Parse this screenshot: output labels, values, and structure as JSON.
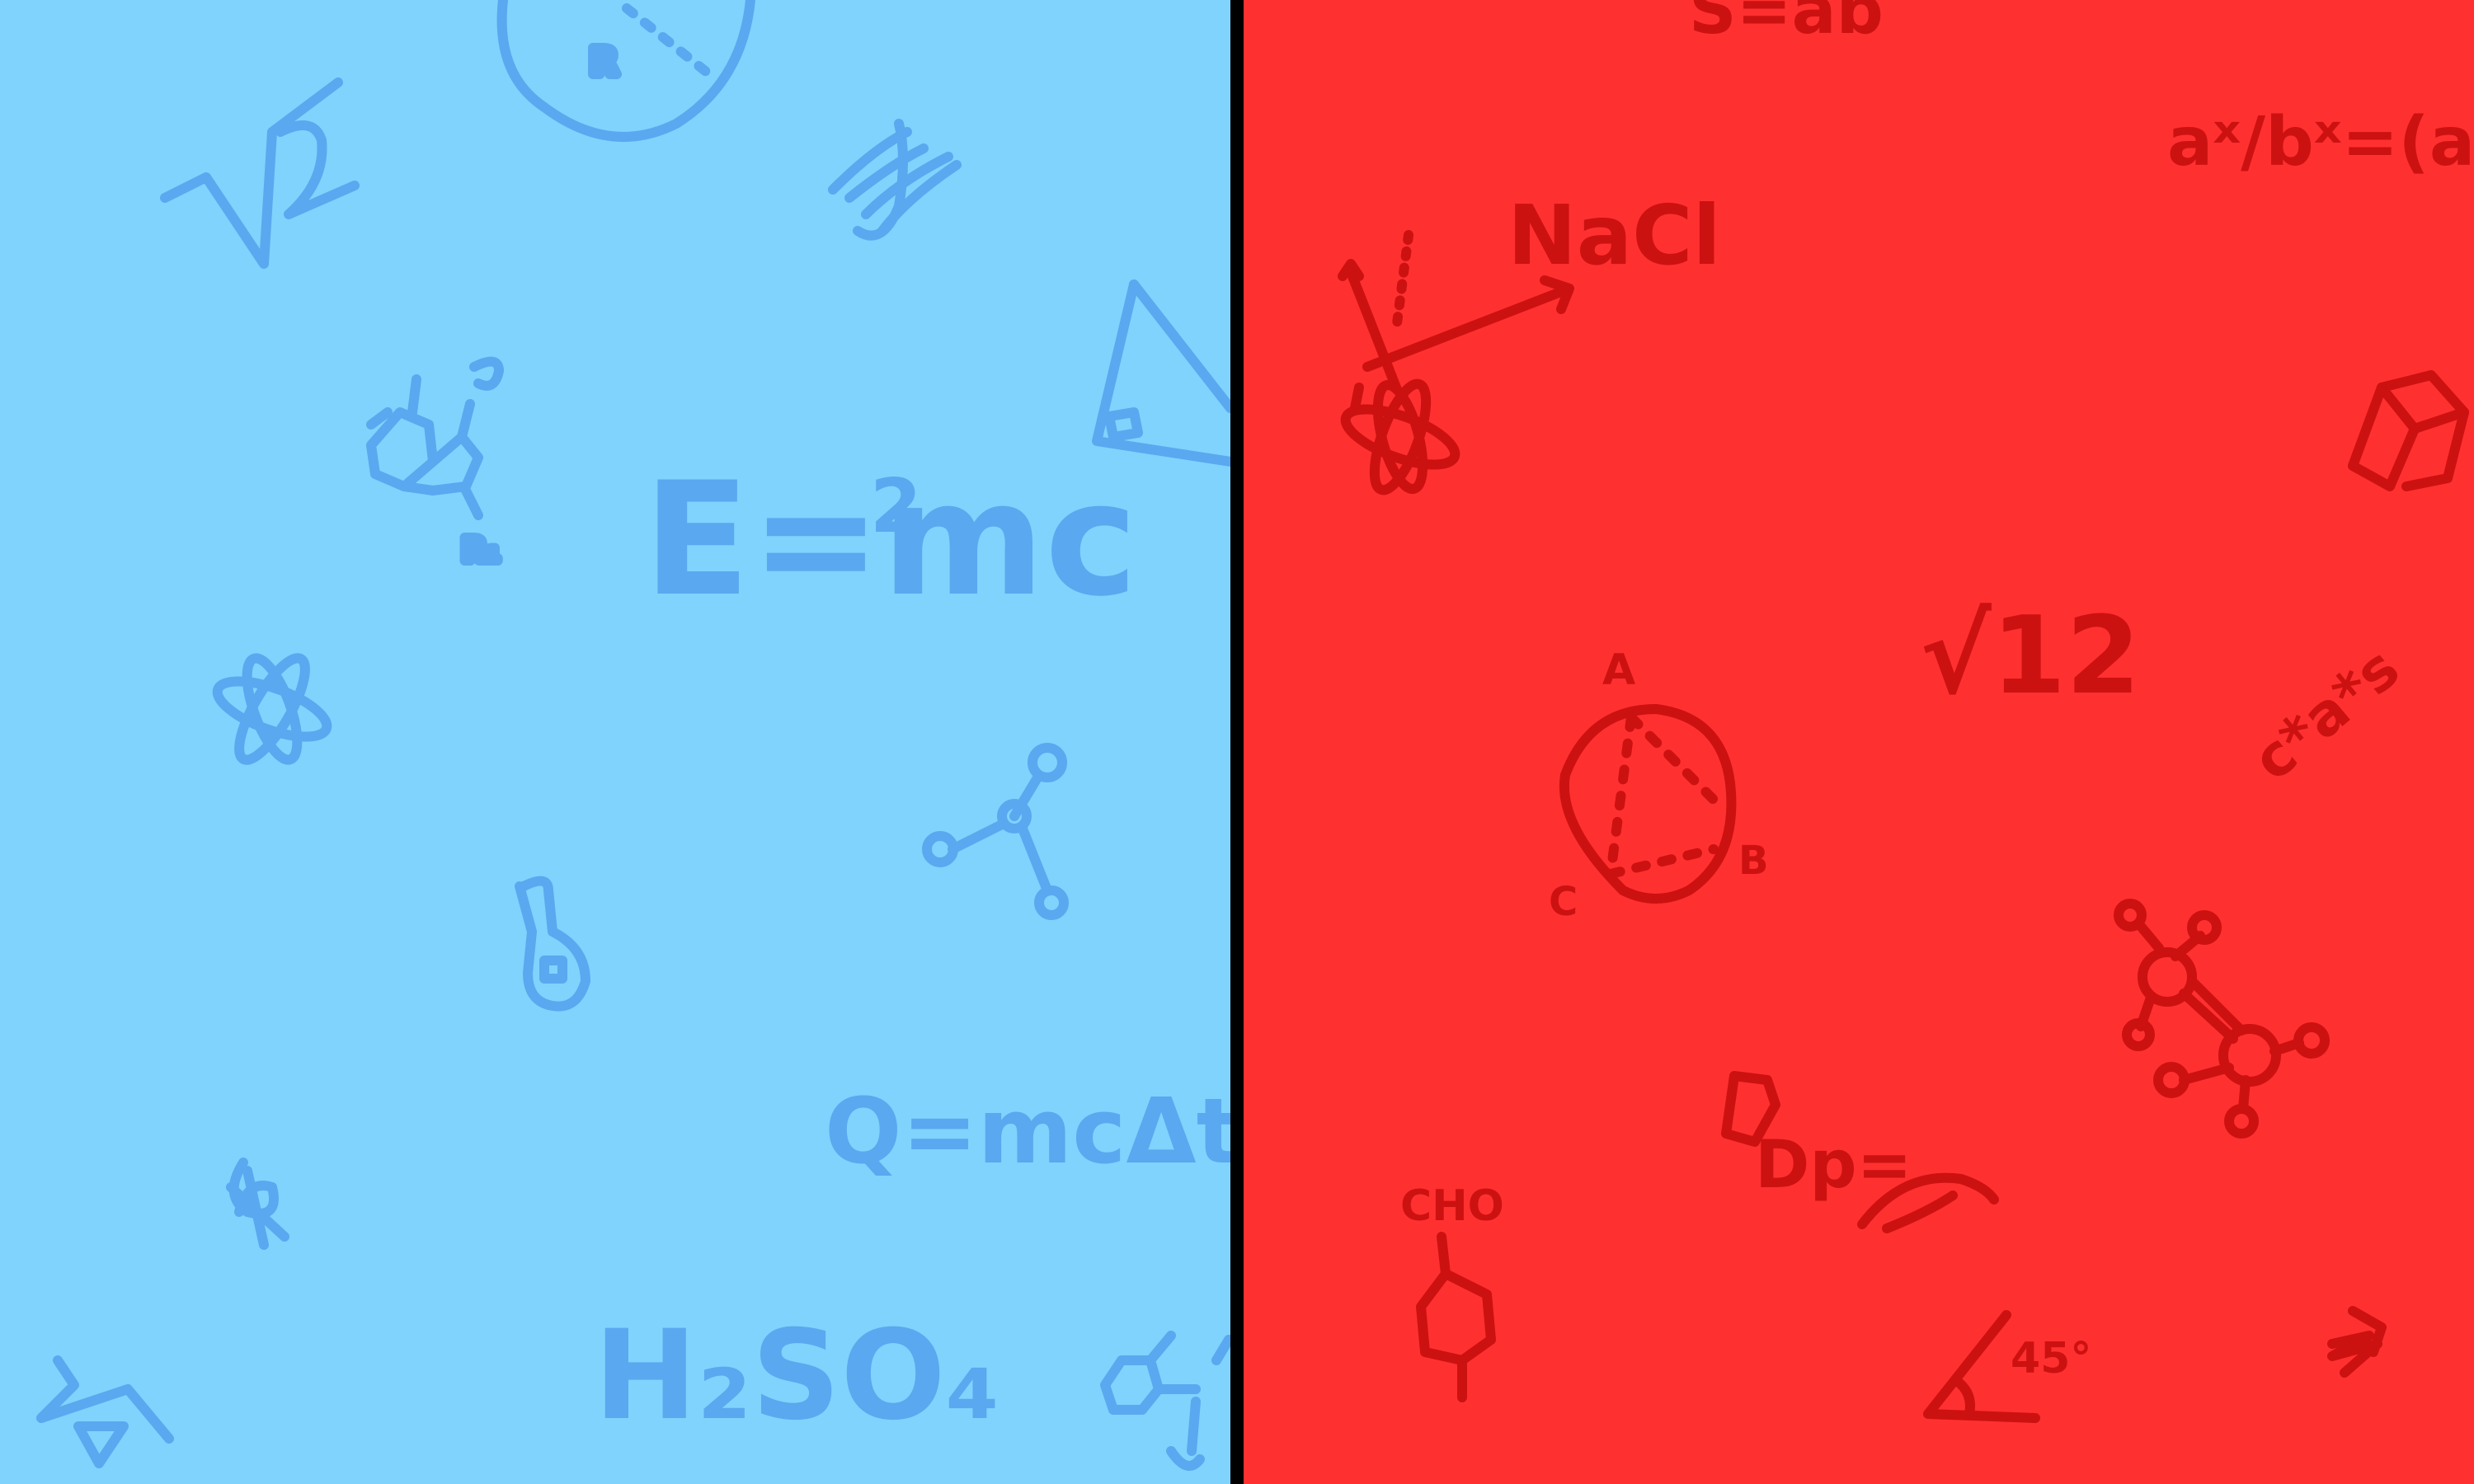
{
  "colors": {
    "left_bg": "#7fd3fd",
    "left_ink": "#5aa8ef",
    "right_bg": "#ff3030",
    "right_ink": "#cc1111",
    "divider": "#000000"
  },
  "left_panel": {
    "equation_energy": "E=mc",
    "equation_energy_exp": "2",
    "equation_heat": "Q=mcΔt",
    "sqrt_two": "√2",
    "formula_acid": "H₂SO₄",
    "small_label": "R",
    "molecule_label": "O",
    "molecule_label2": "R₁"
  },
  "right_panel": {
    "area_formula": "S=ab",
    "salt_formula": "NaCl",
    "power_rule": "aˣ/bˣ=(a/b)ˣ",
    "sqrt_twelve": "√12",
    "circle_label_a": "A",
    "circle_label_b": "B",
    "circle_label_c": "C",
    "aldehyde": "CHO",
    "angle": "45°",
    "density": "Dp=",
    "scribble": "c*a*s"
  }
}
